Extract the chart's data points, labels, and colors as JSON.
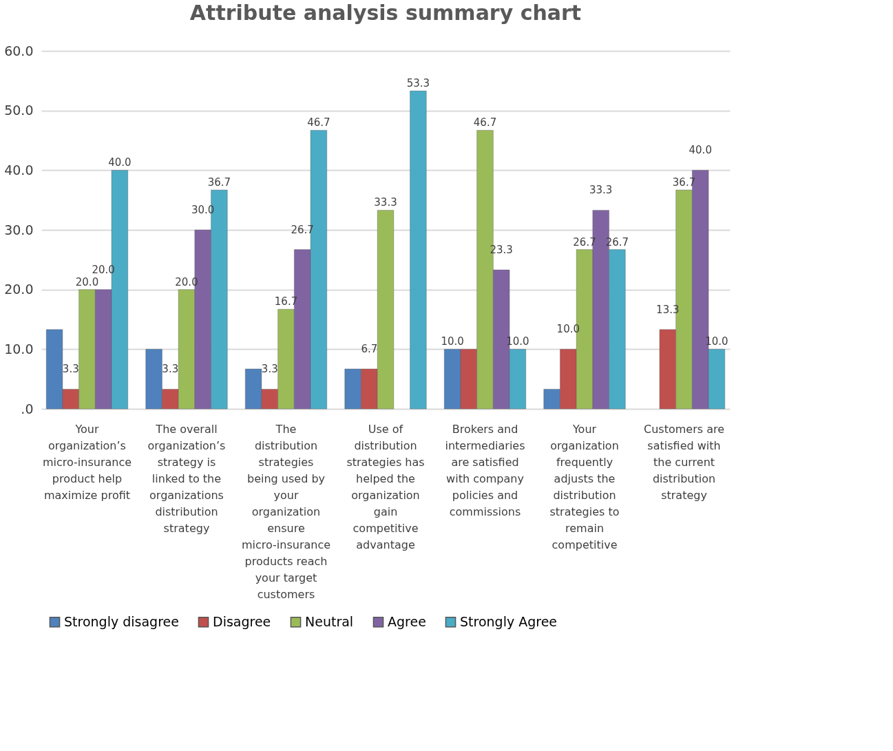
{
  "chart_data": {
    "type": "bar",
    "title": "Attribute analysis summary chart",
    "categories": [
      "Your organization’s micro-insurance product help maximize profit",
      "The overall organization’s strategy is linked to the organizations distribution strategy",
      "The distribution strategies being used by your organization ensure micro-insurance products reach your target customers",
      "Use of distribution strategies has helped the organization gain competitive advantage",
      "Brokers and intermediaries are satisfied with company policies and commissions",
      "Your organization frequently adjusts the distribution strategies to remain competitive",
      "Customers are satisfied with the current distribution strategy"
    ],
    "series": [
      {
        "name": "Strongly disagree",
        "color": "#4f81bd",
        "values": [
          13.3,
          10.0,
          6.7,
          6.7,
          10.0,
          3.3,
          null
        ],
        "value_labels": [
          null,
          null,
          null,
          null,
          "10.0",
          null,
          null
        ]
      },
      {
        "name": "Disagree",
        "color": "#c0504d",
        "values": [
          3.3,
          3.3,
          3.3,
          6.7,
          10.0,
          10.0,
          13.3
        ],
        "value_labels": [
          "3.3",
          "3.3",
          "3.3",
          "6.7",
          null,
          "10.0",
          "13.3"
        ]
      },
      {
        "name": "Neutral",
        "color": "#9bbb59",
        "values": [
          20.0,
          20.0,
          16.7,
          33.3,
          46.7,
          26.7,
          36.7
        ],
        "value_labels": [
          "20.0",
          "20.0",
          "16.7",
          "33.3",
          "46.7",
          "26.7",
          "36.7"
        ]
      },
      {
        "name": "Agree",
        "color": "#8064a2",
        "values": [
          20.0,
          30.0,
          26.7,
          null,
          23.3,
          33.3,
          40.0
        ],
        "value_labels": [
          "20.0",
          "30.0",
          "26.7",
          null,
          "23.3",
          "33.3",
          "40.0"
        ]
      },
      {
        "name": "Strongly Agree",
        "color": "#4bacc6",
        "values": [
          40.0,
          36.7,
          46.7,
          53.3,
          10.0,
          26.7,
          10.0
        ],
        "value_labels": [
          "40.0",
          "36.7",
          "46.7",
          "53.3",
          "10.0",
          "26.7",
          "10.0"
        ]
      }
    ],
    "ylim": [
      0,
      60
    ],
    "yticks": [
      {
        "value": 0,
        "label": ".0"
      },
      {
        "value": 10,
        "label": "10.0"
      },
      {
        "value": 20,
        "label": "20.0"
      },
      {
        "value": 30,
        "label": "30.0"
      },
      {
        "value": 40,
        "label": "40.0"
      },
      {
        "value": 50,
        "label": "50.0"
      },
      {
        "value": 60,
        "label": "60.0"
      }
    ],
    "grid": "y",
    "legend": "bottom"
  }
}
